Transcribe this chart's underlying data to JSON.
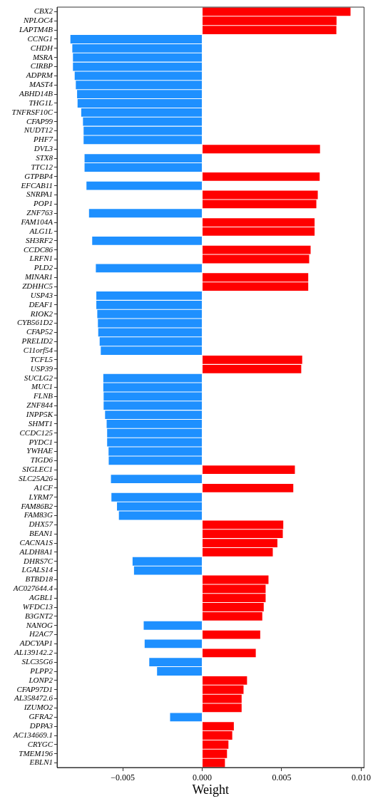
{
  "chart_data": {
    "type": "bar",
    "orientation": "horizontal",
    "xlabel": "Weight",
    "grid": false,
    "categories": [
      "CBX2",
      "NPLOC4",
      "LAPTM4B",
      "CCNG1",
      "CHDH",
      "MSRA",
      "CIRBP",
      "ADPRM",
      "MAST4",
      "ABHD14B",
      "THG1L",
      "TNFRSF10C",
      "CFAP99",
      "NUDT12",
      "PHF7",
      "DVL3",
      "STX8",
      "TTC12",
      "GTPBP4",
      "EFCAB11",
      "SNRPA1",
      "POP1",
      "ZNF763",
      "FAM104A",
      "ALG1L",
      "SH3RF2",
      "CCDC86",
      "LRFN1",
      "PLD2",
      "MINAR1",
      "ZDHHC5",
      "USP43",
      "DEAF1",
      "RIOK2",
      "CYB561D2",
      "CFAP52",
      "PRELID2",
      "C11orf54",
      "TCFL5",
      "USP39",
      "SUCLG2",
      "MUC1",
      "FLNB",
      "ZNF844",
      "INPP5K",
      "SHMT1",
      "CCDC125",
      "PYDC1",
      "YWHAE",
      "TIGD6",
      "SIGLEC1",
      "SLC25A26",
      "A1CF",
      "LYRM7",
      "FAM86B2",
      "FAM83G",
      "DHX57",
      "BEAN1",
      "CACNA1S",
      "ALDH8A1",
      "DHRS7C",
      "LGALS14",
      "BTBD18",
      "AC027644.4",
      "AGBL1",
      "WFDC13",
      "B3GNT2",
      "NANOG",
      "H2AC7",
      "ADCYAP1",
      "AL139142.2",
      "SLC35G6",
      "PLPP2",
      "LONP2",
      "CFAP97D1",
      "AL358472.6",
      "IZUMO2",
      "GFRA2",
      "DPPA3",
      "AC134669.1",
      "CRYGC",
      "TMEM196",
      "EBLN1"
    ],
    "values": [
      0.00933,
      0.00845,
      0.00844,
      -0.00829,
      -0.00817,
      -0.00813,
      -0.00813,
      -0.00802,
      -0.00795,
      -0.00787,
      -0.00784,
      -0.00761,
      -0.0075,
      -0.00746,
      -0.00746,
      0.00741,
      -0.0074,
      -0.0074,
      0.00739,
      -0.00728,
      0.00727,
      0.00718,
      -0.00712,
      0.00707,
      0.00707,
      -0.00692,
      0.00682,
      0.00673,
      -0.00669,
      0.00667,
      0.00667,
      -0.00666,
      -0.00666,
      -0.0066,
      -0.00656,
      -0.00654,
      -0.00645,
      -0.00638,
      0.00629,
      0.00623,
      -0.00622,
      -0.00622,
      -0.0062,
      -0.0062,
      -0.00611,
      -0.00601,
      -0.00598,
      -0.00598,
      -0.00589,
      -0.00588,
      0.00583,
      -0.00574,
      0.00573,
      -0.00571,
      -0.00536,
      -0.00524,
      0.0051,
      0.00507,
      0.00473,
      0.00444,
      -0.00438,
      -0.00429,
      0.00417,
      0.00399,
      0.00399,
      0.00387,
      0.00378,
      -0.00368,
      0.00365,
      -0.00362,
      0.00337,
      -0.00333,
      -0.00284,
      0.00282,
      0.0026,
      0.00248,
      0.00248,
      -0.00202,
      0.00199,
      0.00189,
      0.00165,
      0.00156,
      0.00143
    ],
    "colors": [
      "#ff0000",
      "#ff0000",
      "#ff0000",
      "#1e90ff",
      "#1e90ff",
      "#1e90ff",
      "#1e90ff",
      "#1e90ff",
      "#1e90ff",
      "#1e90ff",
      "#1e90ff",
      "#1e90ff",
      "#1e90ff",
      "#1e90ff",
      "#1e90ff",
      "#ff0000",
      "#1e90ff",
      "#1e90ff",
      "#ff0000",
      "#1e90ff",
      "#ff0000",
      "#ff0000",
      "#1e90ff",
      "#ff0000",
      "#ff0000",
      "#1e90ff",
      "#ff0000",
      "#ff0000",
      "#1e90ff",
      "#ff0000",
      "#ff0000",
      "#1e90ff",
      "#1e90ff",
      "#1e90ff",
      "#1e90ff",
      "#1e90ff",
      "#1e90ff",
      "#1e90ff",
      "#ff0000",
      "#ff0000",
      "#1e90ff",
      "#1e90ff",
      "#1e90ff",
      "#1e90ff",
      "#1e90ff",
      "#1e90ff",
      "#1e90ff",
      "#1e90ff",
      "#1e90ff",
      "#1e90ff",
      "#ff0000",
      "#1e90ff",
      "#ff0000",
      "#1e90ff",
      "#1e90ff",
      "#1e90ff",
      "#ff0000",
      "#ff0000",
      "#ff0000",
      "#ff0000",
      "#1e90ff",
      "#1e90ff",
      "#ff0000",
      "#ff0000",
      "#ff0000",
      "#ff0000",
      "#ff0000",
      "#1e90ff",
      "#ff0000",
      "#1e90ff",
      "#ff0000",
      "#1e90ff",
      "#1e90ff",
      "#ff0000",
      "#ff0000",
      "#ff0000",
      "#ff0000",
      "#1e90ff",
      "#ff0000",
      "#ff0000",
      "#ff0000",
      "#ff0000",
      "#ff0000"
    ],
    "xlim": [
      -0.00913,
      0.01018
    ],
    "xticks": [
      {
        "value": -0.005,
        "label": "−0.005"
      },
      {
        "value": 0,
        "label": "0.000"
      },
      {
        "value": 0.005,
        "label": "0.005"
      },
      {
        "value": 0.01,
        "label": "0.010"
      }
    ]
  }
}
